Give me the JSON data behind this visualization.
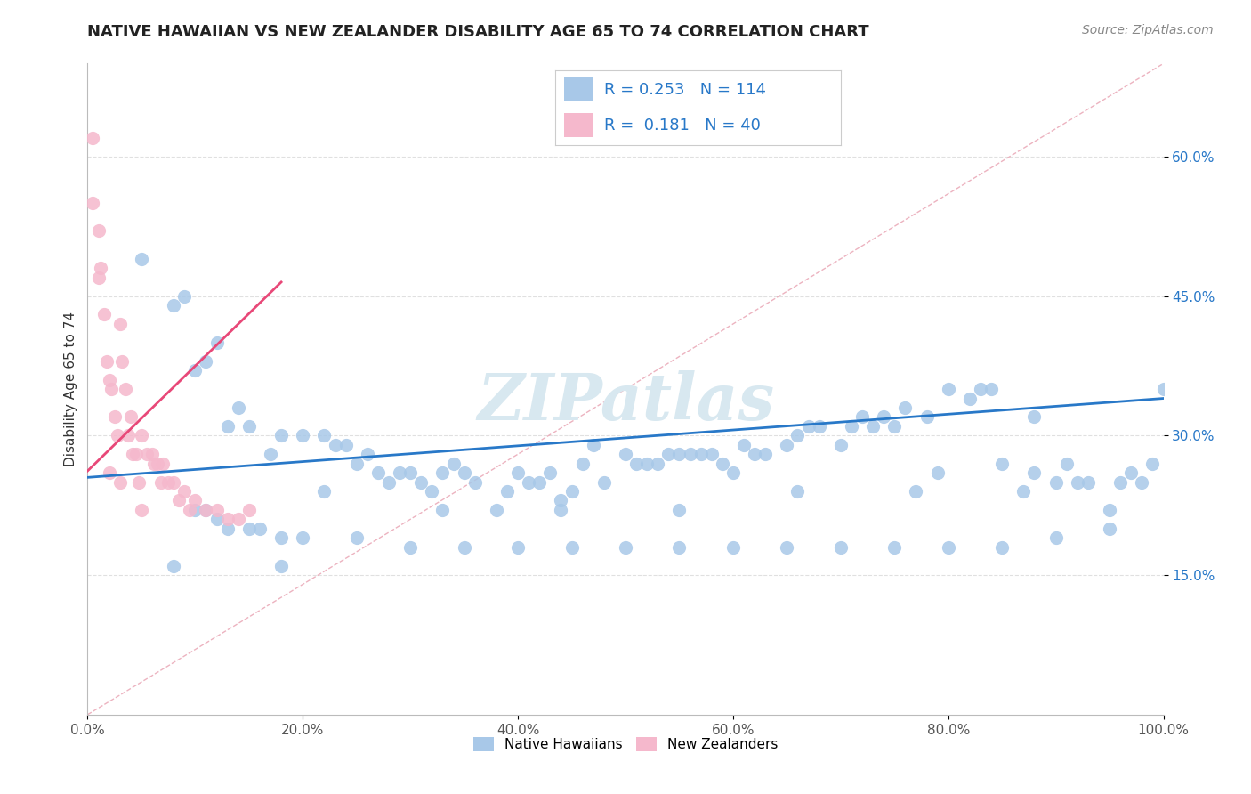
{
  "title": "NATIVE HAWAIIAN VS NEW ZEALANDER DISABILITY AGE 65 TO 74 CORRELATION CHART",
  "source": "Source: ZipAtlas.com",
  "ylabel": "Disability Age 65 to 74",
  "xlim": [
    0.0,
    1.0
  ],
  "ylim": [
    0.0,
    0.7
  ],
  "xtick_vals": [
    0.0,
    0.2,
    0.4,
    0.6,
    0.8,
    1.0
  ],
  "xtick_labels": [
    "0.0%",
    "20.0%",
    "40.0%",
    "60.0%",
    "80.0%",
    "100.0%"
  ],
  "ytick_vals": [
    0.15,
    0.3,
    0.45,
    0.6
  ],
  "ytick_labels": [
    "15.0%",
    "30.0%",
    "45.0%",
    "60.0%"
  ],
  "blue_color": "#a8c8e8",
  "pink_color": "#f5b8cc",
  "blue_line_color": "#2878c8",
  "pink_line_color": "#e84878",
  "diagonal_color": "#e8a0b0",
  "R_blue": 0.253,
  "N_blue": 114,
  "R_pink": 0.181,
  "N_pink": 40,
  "background_color": "#ffffff",
  "grid_color": "#e0e0e0",
  "ytick_color": "#2878c8",
  "blue_scatter_x": [
    0.05,
    0.08,
    0.09,
    0.1,
    0.11,
    0.12,
    0.13,
    0.14,
    0.15,
    0.17,
    0.18,
    0.2,
    0.22,
    0.23,
    0.24,
    0.25,
    0.26,
    0.27,
    0.28,
    0.29,
    0.3,
    0.31,
    0.32,
    0.33,
    0.34,
    0.35,
    0.36,
    0.38,
    0.39,
    0.4,
    0.41,
    0.42,
    0.43,
    0.44,
    0.45,
    0.46,
    0.47,
    0.48,
    0.5,
    0.51,
    0.52,
    0.53,
    0.54,
    0.55,
    0.56,
    0.57,
    0.58,
    0.59,
    0.6,
    0.61,
    0.62,
    0.63,
    0.65,
    0.66,
    0.67,
    0.68,
    0.7,
    0.71,
    0.72,
    0.73,
    0.74,
    0.75,
    0.76,
    0.78,
    0.79,
    0.8,
    0.82,
    0.83,
    0.84,
    0.85,
    0.87,
    0.88,
    0.9,
    0.91,
    0.92,
    0.93,
    0.95,
    0.96,
    0.97,
    0.98,
    0.1,
    0.11,
    0.12,
    0.13,
    0.15,
    0.16,
    0.18,
    0.2,
    0.25,
    0.3,
    0.35,
    0.4,
    0.45,
    0.5,
    0.55,
    0.6,
    0.65,
    0.7,
    0.75,
    0.8,
    0.85,
    0.9,
    0.95,
    1.0,
    0.22,
    0.33,
    0.44,
    0.55,
    0.66,
    0.77,
    0.88,
    0.99,
    0.08,
    0.18
  ],
  "blue_scatter_y": [
    0.49,
    0.44,
    0.45,
    0.37,
    0.38,
    0.4,
    0.31,
    0.33,
    0.31,
    0.28,
    0.3,
    0.3,
    0.3,
    0.29,
    0.29,
    0.27,
    0.28,
    0.26,
    0.25,
    0.26,
    0.26,
    0.25,
    0.24,
    0.26,
    0.27,
    0.26,
    0.25,
    0.22,
    0.24,
    0.26,
    0.25,
    0.25,
    0.26,
    0.23,
    0.24,
    0.27,
    0.29,
    0.25,
    0.28,
    0.27,
    0.27,
    0.27,
    0.28,
    0.28,
    0.28,
    0.28,
    0.28,
    0.27,
    0.26,
    0.29,
    0.28,
    0.28,
    0.29,
    0.3,
    0.31,
    0.31,
    0.29,
    0.31,
    0.32,
    0.31,
    0.32,
    0.31,
    0.33,
    0.32,
    0.26,
    0.35,
    0.34,
    0.35,
    0.35,
    0.27,
    0.24,
    0.32,
    0.25,
    0.27,
    0.25,
    0.25,
    0.22,
    0.25,
    0.26,
    0.25,
    0.22,
    0.22,
    0.21,
    0.2,
    0.2,
    0.2,
    0.19,
    0.19,
    0.19,
    0.18,
    0.18,
    0.18,
    0.18,
    0.18,
    0.18,
    0.18,
    0.18,
    0.18,
    0.18,
    0.18,
    0.18,
    0.19,
    0.2,
    0.35,
    0.24,
    0.22,
    0.22,
    0.22,
    0.24,
    0.24,
    0.26,
    0.27,
    0.16,
    0.16
  ],
  "pink_scatter_x": [
    0.005,
    0.01,
    0.012,
    0.015,
    0.018,
    0.02,
    0.022,
    0.025,
    0.028,
    0.03,
    0.032,
    0.035,
    0.038,
    0.04,
    0.042,
    0.045,
    0.048,
    0.05,
    0.055,
    0.06,
    0.062,
    0.065,
    0.068,
    0.07,
    0.075,
    0.08,
    0.085,
    0.09,
    0.095,
    0.1,
    0.11,
    0.12,
    0.13,
    0.14,
    0.15,
    0.005,
    0.01,
    0.02,
    0.03,
    0.05
  ],
  "pink_scatter_y": [
    0.62,
    0.52,
    0.48,
    0.43,
    0.38,
    0.36,
    0.35,
    0.32,
    0.3,
    0.42,
    0.38,
    0.35,
    0.3,
    0.32,
    0.28,
    0.28,
    0.25,
    0.3,
    0.28,
    0.28,
    0.27,
    0.27,
    0.25,
    0.27,
    0.25,
    0.25,
    0.23,
    0.24,
    0.22,
    0.23,
    0.22,
    0.22,
    0.21,
    0.21,
    0.22,
    0.55,
    0.47,
    0.26,
    0.25,
    0.22
  ],
  "watermark": "ZIPatlas",
  "watermark_color": "#d8e8f0"
}
